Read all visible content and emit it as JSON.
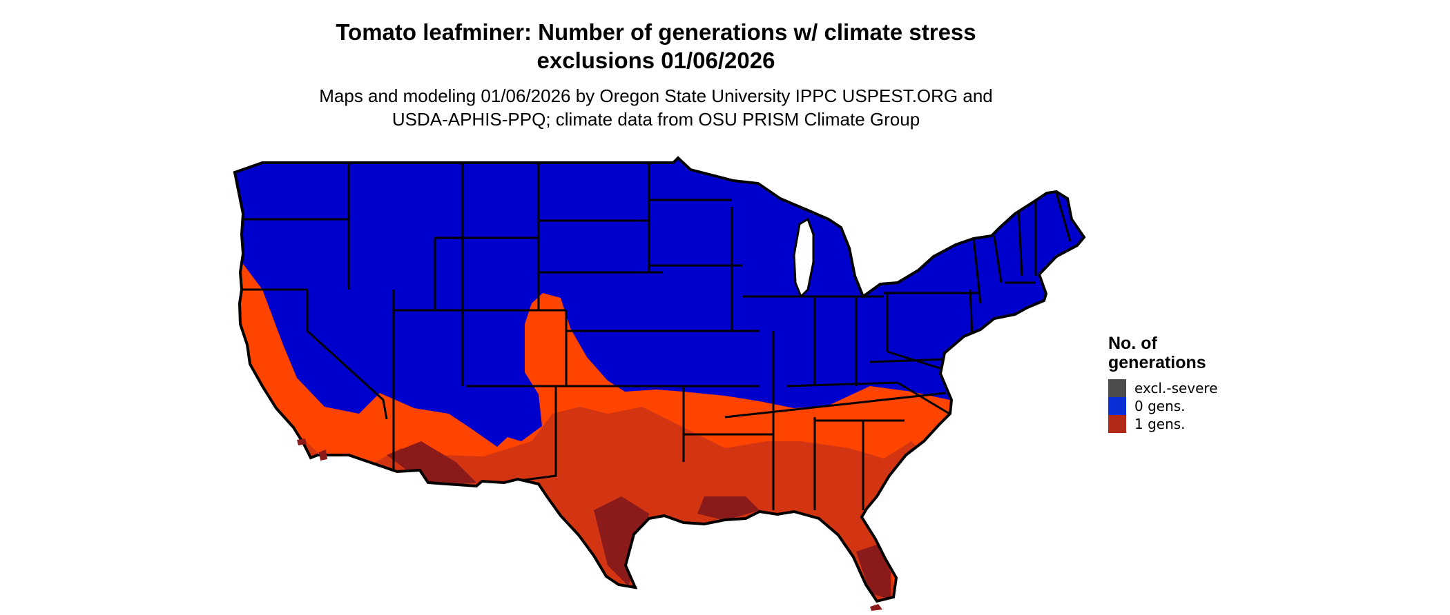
{
  "title": {
    "line1": "Tomato leafminer: Number of generations w/ climate stress",
    "line2": "exclusions 01/06/2026"
  },
  "subtitle": {
    "line1": "Maps and modeling 01/06/2026 by Oregon State University IPPC USPEST.ORG and",
    "line2": "USDA-APHIS-PPQ; climate data from OSU PRISM Climate Group"
  },
  "legend": {
    "title_line1": "No. of",
    "title_line2": "generations",
    "items": [
      {
        "label": "excl.-severe",
        "color": "#4d4d4d"
      },
      {
        "label": "0 gens.",
        "color": "#0a2fd6"
      },
      {
        "label": "1 gens.",
        "color": "#b22a17"
      }
    ]
  },
  "map_colors": {
    "zero_generations": "#0000cc",
    "warm_orange": "#ff4400",
    "warmer_red": "#d33512",
    "hottest_red": "#8b1a1a",
    "borders": "#000000"
  }
}
